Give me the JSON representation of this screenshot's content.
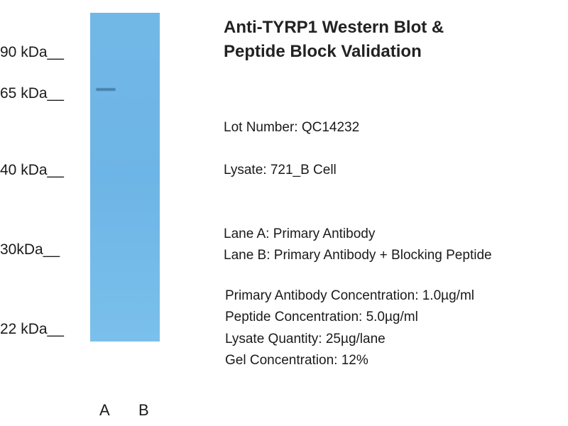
{
  "title": [
    "Anti-TYRP1 Western Blot &",
    "Peptide Block Validation"
  ],
  "markers": [
    "90 kDa__",
    "65 kDa__",
    "40 kDa__",
    "30kDa__",
    "22 kDa__"
  ],
  "lanes": [
    "A",
    "B"
  ],
  "lot_number": "Lot Number: QC14232",
  "lysate": "Lysate: 721_B Cell",
  "lane_a": "Lane A: Primary Antibody",
  "lane_b": "Lane B: Primary Antibody + Blocking Peptide",
  "conditions": [
    "Primary Antibody Concentration: 1.0µg/ml",
    "Peptide Concentration: 5.0µg/ml",
    "Lysate Quantity: 25µg/lane",
    "Gel Concentration: 12%"
  ],
  "colors": {
    "membrane": "#6fb7e6",
    "band": "#3f6f9a"
  }
}
